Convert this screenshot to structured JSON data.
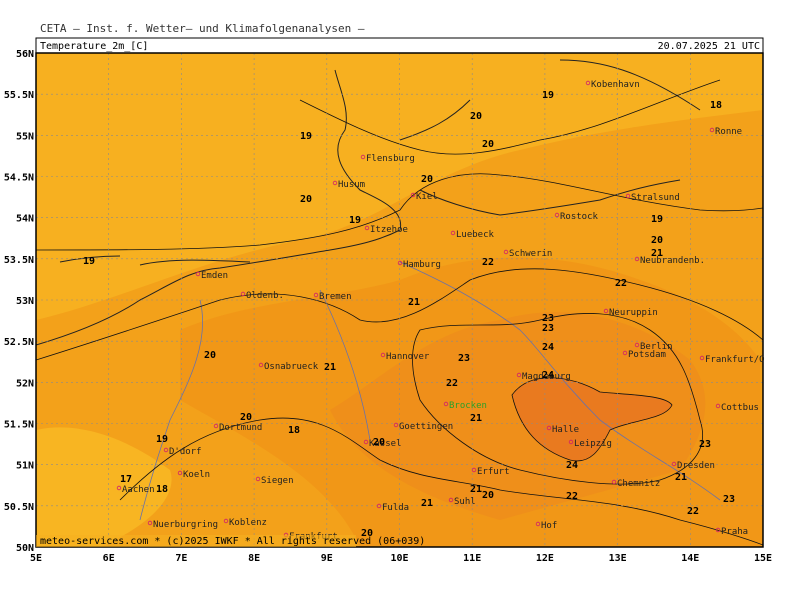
{
  "header": "CETA – Inst. f. Wetter– und Klimafolgenanalysen –",
  "panel": {
    "variable": "Temperature_2m_[C]",
    "datetime": "20.07.2025 21 UTC"
  },
  "lat_labels": [
    "56N",
    "55.5N",
    "55N",
    "54.5N",
    "54N",
    "53.5N",
    "53N",
    "52.5N",
    "52N",
    "51.5N",
    "51N",
    "50.5N",
    "50N"
  ],
  "lon_labels": [
    "5E",
    "6E",
    "7E",
    "8E",
    "9E",
    "10E",
    "11E",
    "12E",
    "13E",
    "14E",
    "15E"
  ],
  "cities": [
    "Kobenhavn",
    "Ronne",
    "Flensburg",
    "Husum",
    "Kiel",
    "Luebeck",
    "Rostock",
    "Stralsund",
    "Itzehoe",
    "Hamburg",
    "Schwerin",
    "Neubrandenb.",
    "Emden",
    "Oldenb.",
    "Bremen",
    "Neuruppin",
    "Berlin",
    "Potsdam",
    "Frankfurt/O",
    "Hannover",
    "Magdeburg",
    "Osnabrueck",
    "Brocken",
    "Cottbus",
    "Dortmund",
    "Goettingen",
    "Halle",
    "Leipzig",
    "D'dorf",
    "Kassel",
    "Koeln",
    "Erfurt",
    "Dresden",
    "Siegen",
    "Aachen",
    "Chemnitz",
    "Suhl",
    "Fulda",
    "Nuerburgring",
    "Koblenz",
    "Frankfurt",
    "Hof",
    "Praha"
  ],
  "contour_labels": [
    19,
    18,
    20,
    20,
    19,
    20,
    20,
    19,
    19,
    20,
    21,
    19,
    22,
    22,
    21,
    23,
    23,
    24,
    20,
    21,
    23,
    22,
    24,
    20,
    21,
    18,
    19,
    20,
    23,
    24,
    21,
    17,
    18,
    21,
    20,
    22,
    23,
    21,
    22,
    20
  ],
  "footer": "meteo-services.com * (c)2025 IWKF * All rights reserved (06+039)"
}
